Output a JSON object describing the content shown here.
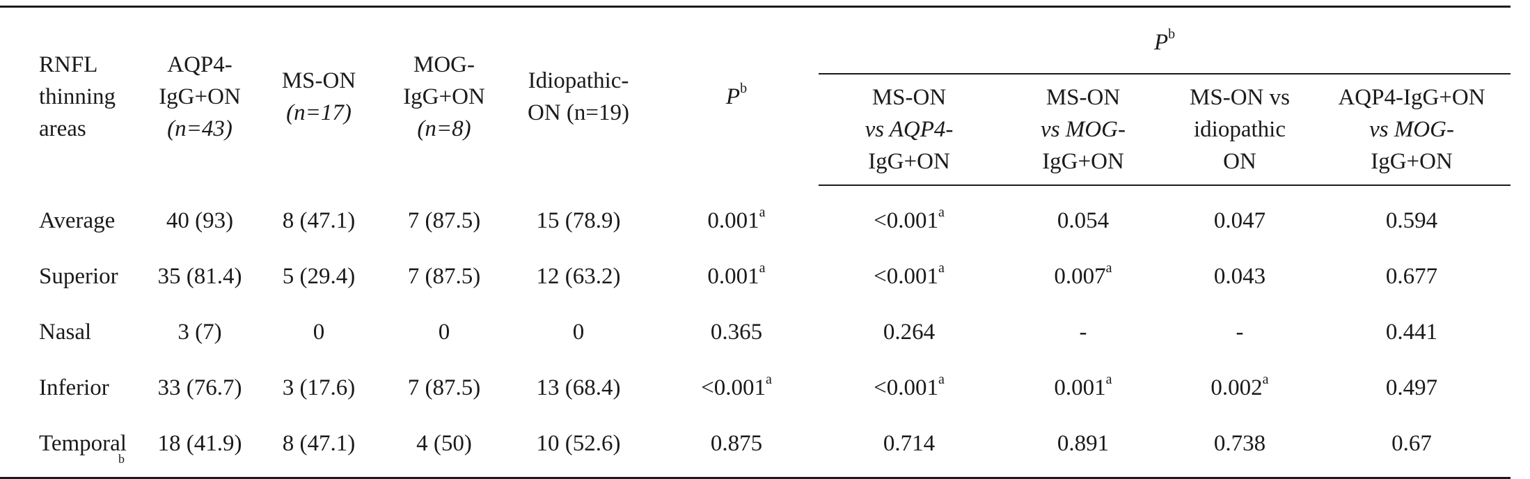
{
  "table": {
    "header": {
      "col_area": [
        "RNFL",
        "thinning",
        "areas"
      ],
      "col_aqp4": {
        "l1": "AQP4-",
        "l2": "IgG+ON",
        "n": "(n=43)"
      },
      "col_ms": {
        "l1": "MS-ON",
        "n": "(n=17)"
      },
      "col_mog": {
        "l1": "MOG-",
        "l2": "IgG+ON",
        "n": "(n=8)"
      },
      "col_idio": {
        "l1": "Idiopathic-",
        "l2": "ON (n=19)"
      },
      "col_p": {
        "base": "P",
        "sup": "b"
      },
      "group_p": {
        "base": "P",
        "sup": "b"
      },
      "sub": [
        {
          "l1": "MS-ON",
          "l2": "vs AQP4-",
          "l3": "IgG+ON"
        },
        {
          "l1": "MS-ON",
          "l2": "vs MOG-",
          "l3": "IgG+ON"
        },
        {
          "l1": "MS-ON vs",
          "l2": "idiopathic",
          "l3": "ON"
        },
        {
          "l1": "AQP4-IgG+ON",
          "l2": "vs MOG-",
          "l3": "IgG+ON"
        }
      ]
    },
    "rows": [
      {
        "area": "Average",
        "aqp4": "40 (93)",
        "ms": "8 (47.1)",
        "mog": "7 (87.5)",
        "idio": "15 (78.9)",
        "p": "0.001",
        "p_sup": "a",
        "c1": "<0.001",
        "c1_sup": "a",
        "c2": "0.054",
        "c2_sup": "",
        "c3": "0.047",
        "c3_sup": "",
        "c4": "0.594",
        "c4_sup": ""
      },
      {
        "area": "Superior",
        "aqp4": "35 (81.4)",
        "ms": "5 (29.4)",
        "mog": "7 (87.5)",
        "idio": "12 (63.2)",
        "p": "0.001",
        "p_sup": "a",
        "c1": "<0.001",
        "c1_sup": "a",
        "c2": "0.007",
        "c2_sup": "a",
        "c3": "0.043",
        "c3_sup": "",
        "c4": "0.677",
        "c4_sup": ""
      },
      {
        "area": "Nasal",
        "aqp4": "3 (7)",
        "ms": "0",
        "mog": "0",
        "idio": "0",
        "p": "0.365",
        "p_sup": "",
        "c1": "0.264",
        "c1_sup": "",
        "c2": "-",
        "c2_sup": "",
        "c3": "-",
        "c3_sup": "",
        "c4": "0.441",
        "c4_sup": ""
      },
      {
        "area": "Inferior",
        "aqp4": "33 (76.7)",
        "ms": "3 (17.6)",
        "mog": "7 (87.5)",
        "idio": "13 (68.4)",
        "p": "<0.001",
        "p_sup": "a",
        "c1": "<0.001",
        "c1_sup": "a",
        "c2": "0.001",
        "c2_sup": "a",
        "c3": "0.002",
        "c3_sup": "a",
        "c4": "0.497",
        "c4_sup": ""
      },
      {
        "area": "Temporal",
        "aqp4": "18 (41.9)",
        "ms": "8 (47.1)",
        "mog": "4 (50)",
        "idio": "10 (52.6)",
        "p": "0.875",
        "p_sup": "",
        "c1": "0.714",
        "c1_sup": "",
        "c2": "0.891",
        "c2_sup": "",
        "c3": "0.738",
        "c3_sup": "",
        "c4": "0.67",
        "c4_sup": ""
      }
    ],
    "footnote_mark": "b"
  }
}
